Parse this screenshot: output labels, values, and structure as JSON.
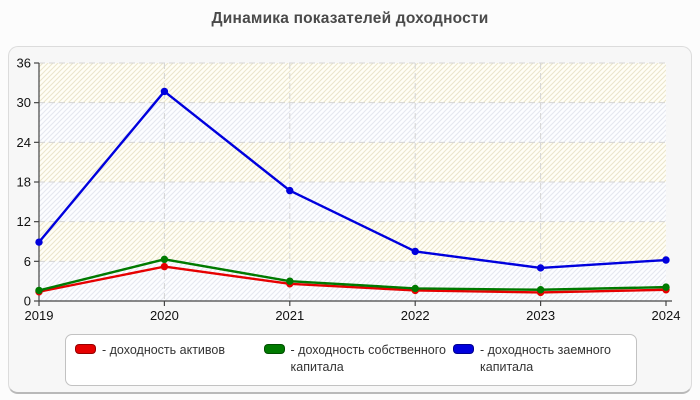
{
  "title": "Динамика показателей доходности",
  "chart_data": {
    "type": "line",
    "categories": [
      "2019",
      "2020",
      "2021",
      "2022",
      "2023",
      "2024"
    ],
    "series": [
      {
        "name": "доходность активов",
        "color": "#e60000",
        "values": [
          1.4,
          5.2,
          2.6,
          1.6,
          1.3,
          1.7
        ]
      },
      {
        "name": "доходность собственного капитала",
        "color": "#007a00",
        "values": [
          1.6,
          6.3,
          3.0,
          1.9,
          1.7,
          2.1
        ]
      },
      {
        "name": "доходность заемного капитала",
        "color": "#0000dd",
        "values": [
          8.9,
          31.7,
          16.7,
          7.5,
          5.0,
          6.2
        ]
      }
    ],
    "title": "Динамика показателей доходности",
    "xlabel": "",
    "ylabel": "",
    "ylim": [
      0,
      36
    ],
    "yticks": [
      0,
      6,
      12,
      18,
      24,
      30,
      36
    ],
    "grid": "dashed horizontal and vertical",
    "legend_position": "bottom",
    "plot_background": "alternating hatched bands"
  },
  "legend": {
    "entries": [
      {
        "label": "- доходность активов",
        "color": "#e60000"
      },
      {
        "label": "- доходность собственного капитала",
        "color": "#007a00"
      },
      {
        "label": "- доходность заемного капитала",
        "color": "#0000dd"
      }
    ]
  },
  "colors": {
    "band_warm_bg": "#fffef6",
    "band_warm_line": "#ebe5cb",
    "band_cool_bg": "#fcfdff",
    "band_cool_line": "#e4e7ef",
    "gridline": "#d4d4d4",
    "axis": "#444444",
    "tick_label": "#111111"
  }
}
